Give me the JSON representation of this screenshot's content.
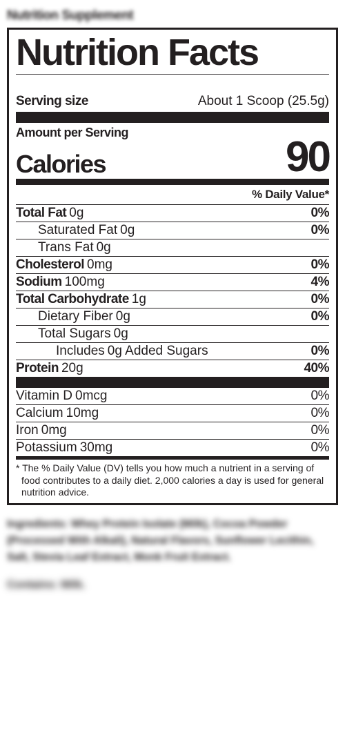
{
  "topLabel": "Nutrition Supplement",
  "panel": {
    "title": "Nutrition Facts",
    "servingLabel": "Serving size",
    "servingValue": "About 1 Scoop (25.5g)",
    "amountPerServing": "Amount per Serving",
    "caloriesLabel": "Calories",
    "caloriesValue": "90",
    "dvHeader": "% Daily Value*",
    "nutrients": [
      {
        "name": "Total Fat",
        "amount": "0g",
        "dv": "0%",
        "bold": true,
        "indent": 0
      },
      {
        "name": "Saturated Fat",
        "amount": "0g",
        "dv": "0%",
        "bold": false,
        "indent": 1,
        "dvBold": true
      },
      {
        "name": "Trans Fat",
        "amount": "0g",
        "dv": "",
        "bold": false,
        "indent": 1
      },
      {
        "name": "Cholesterol",
        "amount": "0mg",
        "dv": "0%",
        "bold": true,
        "indent": 0
      },
      {
        "name": "Sodium",
        "amount": "100mg",
        "dv": "4%",
        "bold": true,
        "indent": 0
      },
      {
        "name": "Total Carbohydrate",
        "amount": "1g",
        "dv": "0%",
        "bold": true,
        "indent": 0
      },
      {
        "name": "Dietary Fiber",
        "amount": "0g",
        "dv": "0%",
        "bold": false,
        "indent": 1,
        "dvBold": true
      },
      {
        "name": "Total Sugars",
        "amount": "0g",
        "dv": "",
        "bold": false,
        "indent": 1
      },
      {
        "name": "Includes",
        "amount": "0g Added Sugars",
        "dv": "0%",
        "bold": false,
        "indent": 2,
        "dvBold": true
      },
      {
        "name": "Protein",
        "amount": "20g",
        "dv": "40%",
        "bold": true,
        "indent": 0
      }
    ],
    "vitamins": [
      {
        "name": "Vitamin D",
        "amount": "0mcg",
        "dv": "0%"
      },
      {
        "name": "Calcium",
        "amount": "10mg",
        "dv": "0%"
      },
      {
        "name": "Iron",
        "amount": "0mg",
        "dv": "0%"
      },
      {
        "name": "Potassium",
        "amount": "30mg",
        "dv": "0%"
      }
    ],
    "footnote": "* The % Daily Value (DV) tells you how much a nutrient in a serving of food contributes to a daily diet. 2,000 calories a  day is used for general nutrition advice."
  },
  "ingredients": "Ingredients: Whey Protein Isolate (Milk), Cocoa Powder (Processed With Alkali), Natural Flavors, Sunflower Lecithin, Salt, Stevia Leaf Extract, Monk Fruit Extract.",
  "allergen": "Contains: Milk."
}
